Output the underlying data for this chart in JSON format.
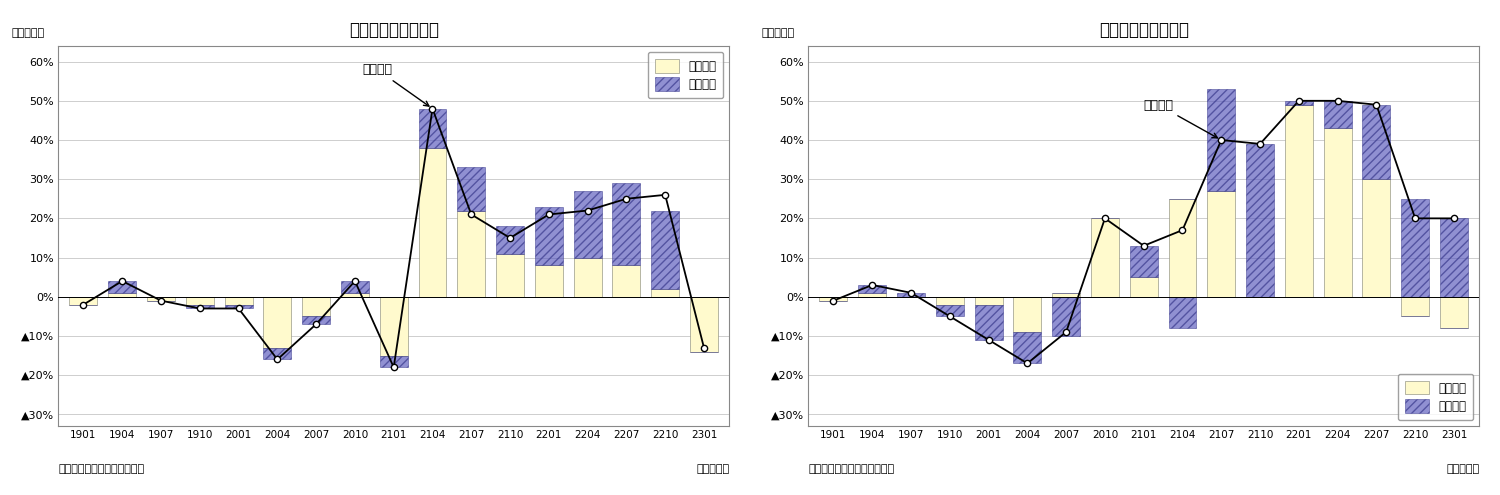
{
  "title_left": "輸出金額の要因分解",
  "title_right": "輸入金額の要因分解",
  "xtick_labels": [
    "1901",
    "1904",
    "1907",
    "1910",
    "2001",
    "2004",
    "2007",
    "2010",
    "2101",
    "2104",
    "2107",
    "2110",
    "2201",
    "2204",
    "2207",
    "2210",
    "2301"
  ],
  "ytick_vals": [
    -30,
    -20,
    -10,
    0,
    10,
    20,
    30,
    40,
    50,
    60
  ],
  "ytick_labels": [
    "▲30%",
    "▲20%",
    "▲10%",
    "0%",
    "10%",
    "20%",
    "30%",
    "40%",
    "50%",
    "60%"
  ],
  "legend_quantity": "数量要因",
  "legend_price": "価格要因",
  "annotation_left": "輸出金額",
  "annotation_right": "輸入金額",
  "source": "（資料）財務省「貿易統計」",
  "xlabel": "（年・月）",
  "ylabel": "（前年比）",
  "bar_color_quantity": "#FFFACD",
  "bar_color_price": "#5555BB",
  "export_quantity": [
    -2,
    1,
    -1,
    -2,
    -2,
    -13,
    -5,
    1,
    -15,
    38,
    22,
    11,
    8,
    10,
    8,
    2,
    -14
  ],
  "export_price": [
    0,
    3,
    0,
    -1,
    -1,
    -3,
    -2,
    3,
    -3,
    10,
    11,
    7,
    15,
    17,
    21,
    20,
    0
  ],
  "export_line": [
    -2,
    4,
    -1,
    -3,
    -3,
    -16,
    -7,
    4,
    -18,
    48,
    21,
    15,
    21,
    22,
    25,
    26,
    -13
  ],
  "import_quantity": [
    -1,
    1,
    0,
    -2,
    -2,
    -9,
    1,
    20,
    5,
    25,
    27,
    0,
    49,
    43,
    30,
    -5,
    -8
  ],
  "import_price": [
    0,
    2,
    1,
    -3,
    -9,
    -8,
    -10,
    0,
    8,
    -8,
    26,
    39,
    1,
    7,
    19,
    25,
    20
  ],
  "import_line": [
    -1,
    3,
    1,
    -5,
    -11,
    -17,
    -9,
    20,
    13,
    17,
    40,
    39,
    50,
    50,
    49,
    20,
    20
  ]
}
